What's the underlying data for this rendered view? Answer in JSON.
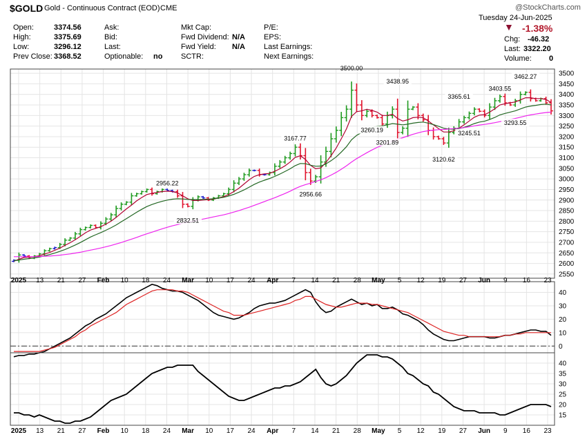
{
  "header": {
    "symbol": "$GOLD",
    "name": "Gold - Continuous Contract (EOD)",
    "exchange": "CME",
    "watermark": "@StockCharts.com",
    "date": "Tuesday  24-Jun-2025",
    "change_pct": "-1.38%",
    "chg_label": "Chg:",
    "chg_value": "-46.32",
    "last_label": "Last:",
    "last_value": "3322.20",
    "volume_label": "Volume:",
    "volume_value": "0",
    "col1": [
      {
        "label": "Open:",
        "value": "3374.56"
      },
      {
        "label": "High:",
        "value": "3375.69"
      },
      {
        "label": "Low:",
        "value": "3296.12"
      },
      {
        "label": "Prev Close:",
        "value": "3368.52"
      }
    ],
    "col2": [
      {
        "label": "Ask:",
        "value": ""
      },
      {
        "label": "Bid:",
        "value": ""
      },
      {
        "label": "Last:",
        "value": ""
      },
      {
        "label": "Optionable:",
        "value": "no"
      }
    ],
    "col3": [
      {
        "label": "Mkt Cap:",
        "value": ""
      },
      {
        "label": "Fwd Dividend:",
        "value": "N/A"
      },
      {
        "label": "Fwd Yield:",
        "value": "N/A"
      },
      {
        "label": "SCTR:",
        "value": ""
      }
    ],
    "col4": [
      {
        "label": "P/E:"
      },
      {
        "label": "EPS:"
      },
      {
        "label": "Last Earnings:"
      },
      {
        "label": "Next Earnings:"
      }
    ]
  },
  "colors": {
    "up": "#1f9a1f",
    "down": "#e0102a",
    "neutral": "#1a1acc",
    "ma_fast": "#b00030",
    "ma_mid": "#226622",
    "ma_slow": "#ee22ee",
    "ind_black": "#000000",
    "ind_red": "#dd2222"
  },
  "chart_data": [
    {
      "type": "ohlc",
      "y_ticks": [
        2550,
        2600,
        2650,
        2700,
        2750,
        2800,
        2850,
        2900,
        2950,
        3000,
        3050,
        3100,
        3150,
        3200,
        3250,
        3300,
        3350,
        3400,
        3450,
        3500
      ],
      "ylim": [
        2530,
        3520
      ],
      "x_labels": [
        "2025",
        "13",
        "21",
        "27",
        "Feb",
        "10",
        "18",
        "24",
        "Mar",
        "10",
        "17",
        "24",
        "Apr",
        "7",
        "14",
        "21",
        "28",
        "May",
        "5",
        "12",
        "19",
        "27",
        "Jun",
        "9",
        "16",
        "23"
      ],
      "close": [
        2615,
        2640,
        2635,
        2625,
        2635,
        2645,
        2660,
        2670,
        2675,
        2690,
        2710,
        2720,
        2740,
        2760,
        2770,
        2780,
        2770,
        2790,
        2810,
        2830,
        2860,
        2880,
        2890,
        2920,
        2930,
        2940,
        2950,
        2930,
        2940,
        2950,
        2945,
        2940,
        2920,
        2880,
        2870,
        2900,
        2915,
        2910,
        2900,
        2910,
        2920,
        2930,
        2950,
        2980,
        3000,
        3020,
        3040,
        3040,
        3020,
        3020,
        3030,
        3060,
        3080,
        3100,
        3120,
        3150,
        3110,
        3030,
        2990,
        3010,
        3080,
        3130,
        3190,
        3230,
        3290,
        3330,
        3420,
        3350,
        3300,
        3320,
        3300,
        3290,
        3260,
        3300,
        3330,
        3220,
        3240,
        3330,
        3340,
        3300,
        3280,
        3230,
        3200,
        3190,
        3170,
        3220,
        3240,
        3270,
        3290,
        3310,
        3330,
        3320,
        3300,
        3340,
        3370,
        3390,
        3360,
        3350,
        3370,
        3400,
        3410,
        3380,
        3370,
        3380,
        3360,
        3322
      ],
      "series": [
        {
          "name": "MA fast",
          "values": [
            2610,
            2620,
            2628,
            2630,
            2632,
            2636,
            2644,
            2652,
            2662,
            2672,
            2686,
            2698,
            2712,
            2728,
            2745,
            2758,
            2766,
            2774,
            2786,
            2800,
            2818,
            2838,
            2858,
            2876,
            2896,
            2912,
            2926,
            2932,
            2936,
            2940,
            2942,
            2940,
            2934,
            2920,
            2906,
            2898,
            2898,
            2900,
            2902,
            2904,
            2910,
            2916,
            2926,
            2940,
            2956,
            2976,
            2996,
            3012,
            3020,
            3024,
            3026,
            3036,
            3048,
            3062,
            3080,
            3102,
            3110,
            3092,
            3064,
            3048,
            3052,
            3078,
            3110,
            3146,
            3190,
            3236,
            3296,
            3318,
            3322,
            3330,
            3324,
            3316,
            3300,
            3300,
            3306,
            3286,
            3274,
            3280,
            3290,
            3292,
            3290,
            3274,
            3256,
            3238,
            3222,
            3222,
            3228,
            3240,
            3256,
            3274,
            3292,
            3302,
            3304,
            3316,
            3332,
            3350,
            3356,
            3360,
            3364,
            3374,
            3384,
            3384,
            3380,
            3380,
            3376,
            3362
          ]
        },
        {
          "name": "MA mid",
          "values": [
            2612,
            2616,
            2620,
            2623,
            2626,
            2630,
            2636,
            2642,
            2649,
            2657,
            2666,
            2676,
            2687,
            2699,
            2712,
            2725,
            2736,
            2746,
            2757,
            2769,
            2782,
            2797,
            2812,
            2827,
            2842,
            2856,
            2869,
            2879,
            2887,
            2894,
            2900,
            2904,
            2906,
            2905,
            2903,
            2902,
            2902,
            2903,
            2904,
            2906,
            2909,
            2913,
            2919,
            2927,
            2937,
            2948,
            2961,
            2974,
            2985,
            2994,
            3002,
            3012,
            3023,
            3035,
            3048,
            3063,
            3073,
            3072,
            3065,
            3060,
            3061,
            3071,
            3086,
            3104,
            3127,
            3152,
            3185,
            3206,
            3220,
            3234,
            3243,
            3249,
            3251,
            3256,
            3262,
            3259,
            3256,
            3259,
            3264,
            3267,
            3269,
            3264,
            3257,
            3249,
            3240,
            3236,
            3235,
            3238,
            3244,
            3252,
            3262,
            3269,
            3273,
            3281,
            3291,
            3303,
            3310,
            3316,
            3322,
            3331,
            3340,
            3345,
            3348,
            3352,
            3354,
            3350
          ]
        },
        {
          "name": "MA slow",
          "values": [
            2632,
            2632,
            2632,
            2632,
            2632,
            2633,
            2634,
            2635,
            2637,
            2639,
            2642,
            2645,
            2649,
            2653,
            2658,
            2663,
            2668,
            2673,
            2679,
            2685,
            2692,
            2699,
            2707,
            2715,
            2723,
            2732,
            2740,
            2748,
            2756,
            2764,
            2771,
            2778,
            2784,
            2790,
            2795,
            2800,
            2805,
            2810,
            2815,
            2820,
            2825,
            2830,
            2836,
            2843,
            2850,
            2858,
            2866,
            2875,
            2884,
            2893,
            2902,
            2911,
            2921,
            2931,
            2942,
            2954,
            2965,
            2973,
            2980,
            2988,
            2996,
            3006,
            3018,
            3031,
            3046,
            3062,
            3080,
            3096,
            3110,
            3124,
            3137,
            3149,
            3159,
            3170,
            3180,
            3188,
            3195,
            3203,
            3211,
            3218,
            3224,
            3228,
            3231,
            3233,
            3234,
            3236,
            3238,
            3240,
            3243,
            3247,
            3251,
            3255,
            3258,
            3262,
            3266,
            3271,
            3276,
            3281,
            3286,
            3292,
            3298,
            3303,
            3307,
            3311,
            3314,
            3316
          ]
        }
      ],
      "annotations": [
        {
          "label": "2956.22",
          "x": 30,
          "y": 2956
        },
        {
          "label": "2832.51",
          "x": 34,
          "y": 2832
        },
        {
          "label": "3167.77",
          "x": 55,
          "y": 3168
        },
        {
          "label": "2956.66",
          "x": 58,
          "y": 2957
        },
        {
          "label": "3500.00",
          "x": 66,
          "y": 3500
        },
        {
          "label": "3260.19",
          "x": 70,
          "y": 3260
        },
        {
          "label": "3438.95",
          "x": 75,
          "y": 3439
        },
        {
          "label": "3201.89",
          "x": 73,
          "y": 3202
        },
        {
          "label": "3120.62",
          "x": 84,
          "y": 3121
        },
        {
          "label": "3365.61",
          "x": 87,
          "y": 3366
        },
        {
          "label": "3245.51",
          "x": 89,
          "y": 3246
        },
        {
          "label": "3403.55",
          "x": 95,
          "y": 3404
        },
        {
          "label": "3293.55",
          "x": 98,
          "y": 3294
        },
        {
          "label": "3462.27",
          "x": 100,
          "y": 3462
        }
      ]
    },
    {
      "type": "line",
      "y_ticks": [
        0,
        10,
        20,
        30,
        40
      ],
      "ylim": [
        -5,
        48
      ],
      "reference_line": 0,
      "series": [
        {
          "name": "black",
          "values": [
            -8,
            -7,
            -7,
            -6,
            -6,
            -5,
            -4,
            -2,
            0,
            2,
            4,
            6,
            9,
            12,
            15,
            17,
            20,
            22,
            24,
            27,
            30,
            33,
            36,
            38,
            40,
            42,
            44,
            46,
            45,
            43,
            42,
            41,
            41,
            40,
            38,
            36,
            34,
            31,
            28,
            25,
            23,
            22,
            21,
            20,
            21,
            23,
            25,
            28,
            30,
            31,
            32,
            32,
            33,
            34,
            36,
            38,
            40,
            42,
            40,
            33,
            28,
            25,
            26,
            29,
            31,
            33,
            35,
            33,
            31,
            32,
            30,
            31,
            28,
            28,
            29,
            27,
            24,
            23,
            21,
            19,
            16,
            12,
            9,
            7,
            5,
            4,
            4,
            5,
            6,
            7,
            7,
            7,
            7,
            6,
            6,
            7,
            8,
            8,
            9,
            10,
            11,
            12,
            12,
            11,
            11,
            8
          ]
        },
        {
          "name": "red",
          "values": [
            -4,
            -4,
            -4,
            -4,
            -4,
            -4,
            -3,
            -2,
            -1,
            1,
            3,
            5,
            7,
            10,
            12,
            15,
            17,
            19,
            21,
            23,
            25,
            28,
            31,
            33,
            35,
            37,
            39,
            41,
            42,
            42,
            42,
            42,
            41,
            41,
            40,
            38,
            36,
            34,
            32,
            30,
            28,
            26,
            25,
            23,
            23,
            23,
            24,
            25,
            26,
            27,
            28,
            29,
            30,
            31,
            32,
            34,
            35,
            37,
            37,
            35,
            33,
            31,
            30,
            29,
            29,
            30,
            31,
            32,
            32,
            32,
            31,
            31,
            30,
            29,
            28,
            27,
            26,
            25,
            23,
            21,
            19,
            17,
            15,
            13,
            11,
            10,
            9,
            8,
            8,
            7,
            7,
            7,
            7,
            7,
            7,
            7,
            8,
            8,
            9,
            9,
            10,
            10,
            10,
            10,
            10,
            10
          ]
        }
      ]
    },
    {
      "type": "line",
      "y_ticks": [
        15,
        20,
        25,
        30,
        35,
        40
      ],
      "ylim": [
        10,
        45
      ],
      "series": [
        {
          "name": "black",
          "values": [
            16,
            16,
            15,
            15,
            14,
            15,
            14,
            13,
            12,
            12,
            11,
            11,
            12,
            12,
            13,
            14,
            16,
            18,
            20,
            22,
            23,
            24,
            25,
            27,
            29,
            31,
            33,
            35,
            36,
            37,
            38,
            38,
            39,
            39,
            39,
            39,
            36,
            34,
            32,
            30,
            28,
            26,
            24,
            23,
            22,
            22,
            23,
            24,
            25,
            26,
            27,
            28,
            28,
            29,
            29,
            30,
            31,
            33,
            35,
            37,
            33,
            30,
            29,
            30,
            32,
            34,
            37,
            40,
            42,
            44,
            44,
            44,
            43,
            43,
            42,
            40,
            38,
            35,
            34,
            32,
            30,
            29,
            26,
            25,
            23,
            21,
            19,
            18,
            17,
            17,
            17,
            16,
            16,
            16,
            16,
            15,
            15,
            16,
            17,
            18,
            19,
            20,
            20,
            20,
            20,
            19
          ]
        }
      ]
    }
  ]
}
